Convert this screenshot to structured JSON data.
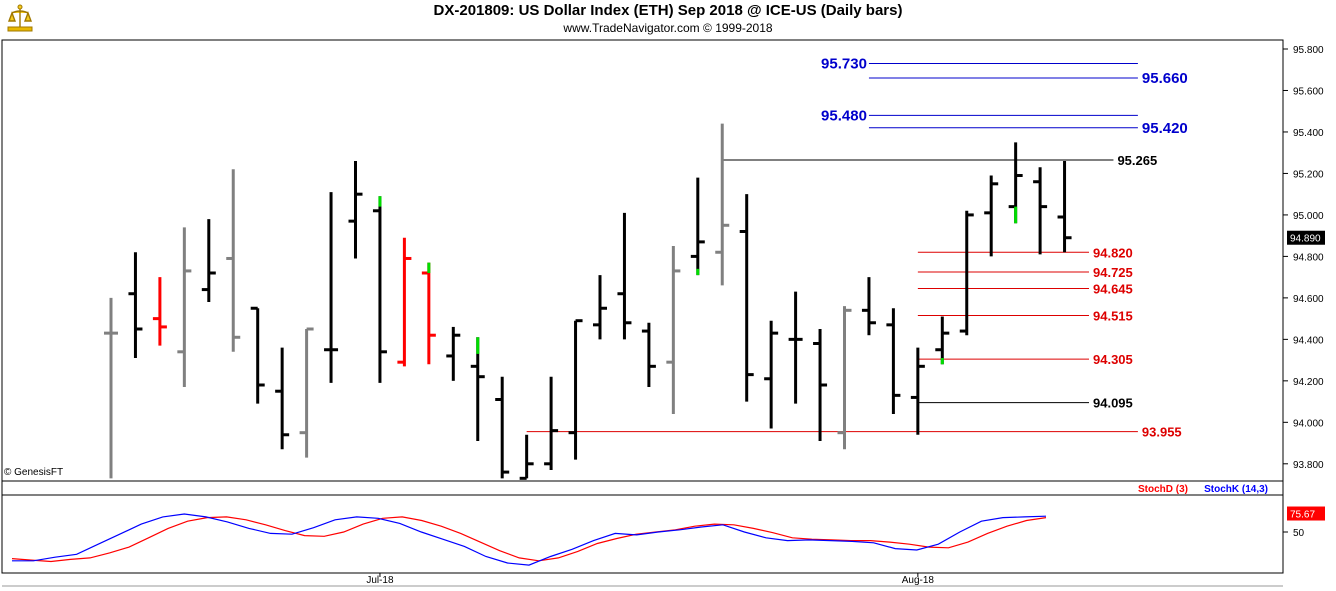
{
  "header": {
    "title": "DX-201809:  US Dollar Index (ETH) Sep 2018 @ ICE-US  (Daily bars)",
    "subtitle": "www.TradeNavigator.com © 1999-2018",
    "copyright": "© GenesisFT"
  },
  "colors": {
    "up": "#000000",
    "down": "#808080",
    "red_bar": "#ff0000",
    "green_tick": "#00dd00",
    "blue_line": "#0000cc",
    "red_line": "#dd0000",
    "black_line": "#000000",
    "stochK": "#0000ff",
    "stochD": "#ff0000"
  },
  "chart_data": [
    {
      "type": "ohlc",
      "title": "DX-201809:  US Dollar Index (ETH) Sep 2018 @ ICE-US  (Daily bars)",
      "ylim": [
        93.73,
        95.92
      ],
      "yticks": [
        "95.800",
        "95.600",
        "95.400",
        "95.200",
        "95.000",
        "94.800",
        "94.600",
        "94.400",
        "94.200",
        "94.000",
        "93.800"
      ],
      "x_labels": [
        {
          "label": "Jul-18",
          "bar": 11
        },
        {
          "label": "Aug-18",
          "bar": 33
        }
      ],
      "last_price": "94.890",
      "bars": [
        {
          "o": 94.43,
          "h": 94.6,
          "l": 93.73,
          "c": 94.43,
          "color": "gray"
        },
        {
          "o": 94.62,
          "h": 94.82,
          "l": 94.31,
          "c": 94.45,
          "color": "black"
        },
        {
          "o": 94.5,
          "h": 94.7,
          "l": 94.37,
          "c": 94.46,
          "color": "red"
        },
        {
          "o": 94.34,
          "h": 94.94,
          "l": 94.17,
          "c": 94.73,
          "color": "gray"
        },
        {
          "o": 94.64,
          "h": 94.98,
          "l": 94.58,
          "c": 94.72,
          "color": "black"
        },
        {
          "o": 94.79,
          "h": 95.22,
          "l": 94.34,
          "c": 94.41,
          "color": "gray"
        },
        {
          "o": 94.55,
          "h": 94.55,
          "l": 94.09,
          "c": 94.18,
          "color": "black"
        },
        {
          "o": 94.15,
          "h": 94.36,
          "l": 93.87,
          "c": 93.94,
          "color": "black"
        },
        {
          "o": 93.95,
          "h": 94.45,
          "l": 93.83,
          "c": 94.45,
          "color": "gray"
        },
        {
          "o": 94.35,
          "h": 95.11,
          "l": 94.19,
          "c": 94.35,
          "color": "black"
        },
        {
          "o": 94.97,
          "h": 95.26,
          "l": 94.79,
          "c": 95.1,
          "color": "black"
        },
        {
          "o": 95.02,
          "h": 95.09,
          "l": 94.19,
          "c": 94.34,
          "color": "black",
          "tick": [
            95.04,
            95.09
          ]
        },
        {
          "o": 94.29,
          "h": 94.89,
          "l": 94.27,
          "c": 94.79,
          "color": "red"
        },
        {
          "o": 94.72,
          "h": 94.77,
          "l": 94.28,
          "c": 94.42,
          "color": "red",
          "tick": [
            94.72,
            94.77
          ]
        },
        {
          "o": 94.32,
          "h": 94.46,
          "l": 94.2,
          "c": 94.42,
          "color": "black"
        },
        {
          "o": 94.27,
          "h": 94.41,
          "l": 93.91,
          "c": 94.22,
          "color": "black",
          "tick": [
            94.33,
            94.41
          ]
        },
        {
          "o": 94.11,
          "h": 94.22,
          "l": 93.73,
          "c": 93.76,
          "color": "black"
        },
        {
          "o": 93.73,
          "h": 93.94,
          "l": 93.73,
          "c": 93.8,
          "color": "black"
        },
        {
          "o": 93.8,
          "h": 94.22,
          "l": 93.77,
          "c": 93.96,
          "color": "black"
        },
        {
          "o": 93.95,
          "h": 94.49,
          "l": 93.82,
          "c": 94.49,
          "color": "black"
        },
        {
          "o": 94.47,
          "h": 94.71,
          "l": 94.4,
          "c": 94.55,
          "color": "black"
        },
        {
          "o": 94.62,
          "h": 95.01,
          "l": 94.4,
          "c": 94.48,
          "color": "black"
        },
        {
          "o": 94.44,
          "h": 94.48,
          "l": 94.17,
          "c": 94.27,
          "color": "black"
        },
        {
          "o": 94.29,
          "h": 94.85,
          "l": 94.04,
          "c": 94.73,
          "color": "gray"
        },
        {
          "o": 94.8,
          "h": 95.18,
          "l": 94.71,
          "c": 94.87,
          "color": "black",
          "tick": [
            94.71,
            94.74
          ]
        },
        {
          "o": 94.82,
          "h": 95.44,
          "l": 94.66,
          "c": 94.95,
          "color": "gray"
        },
        {
          "o": 94.92,
          "h": 95.1,
          "l": 94.1,
          "c": 94.23,
          "color": "black"
        },
        {
          "o": 94.21,
          "h": 94.49,
          "l": 93.97,
          "c": 94.43,
          "color": "black"
        },
        {
          "o": 94.4,
          "h": 94.63,
          "l": 94.09,
          "c": 94.4,
          "color": "black"
        },
        {
          "o": 94.38,
          "h": 94.45,
          "l": 93.91,
          "c": 94.18,
          "color": "black"
        },
        {
          "o": 93.95,
          "h": 94.56,
          "l": 93.87,
          "c": 94.54,
          "color": "gray"
        },
        {
          "o": 94.54,
          "h": 94.7,
          "l": 94.42,
          "c": 94.48,
          "color": "black"
        },
        {
          "o": 94.47,
          "h": 94.55,
          "l": 94.04,
          "c": 94.13,
          "color": "black"
        },
        {
          "o": 94.12,
          "h": 94.36,
          "l": 93.94,
          "c": 94.27,
          "color": "black"
        },
        {
          "o": 94.35,
          "h": 94.51,
          "l": 94.28,
          "c": 94.43,
          "color": "black",
          "tick": [
            94.28,
            94.31
          ]
        },
        {
          "o": 94.44,
          "h": 95.02,
          "l": 94.42,
          "c": 95.0,
          "color": "black"
        },
        {
          "o": 95.01,
          "h": 95.19,
          "l": 94.8,
          "c": 95.15,
          "color": "black"
        },
        {
          "o": 95.04,
          "h": 95.35,
          "l": 94.96,
          "c": 95.19,
          "color": "black",
          "tick": [
            94.96,
            95.04
          ]
        },
        {
          "o": 95.16,
          "h": 95.23,
          "l": 94.81,
          "c": 95.04,
          "color": "black"
        },
        {
          "o": 94.99,
          "h": 95.26,
          "l": 94.82,
          "c": 94.89,
          "color": "black"
        }
      ],
      "levels": [
        {
          "value": 95.73,
          "label": "95.730",
          "color": "blue",
          "x0": 31,
          "x1": 42,
          "label_side": "left"
        },
        {
          "value": 95.66,
          "label": "95.660",
          "color": "blue",
          "x0": 31,
          "x1": 42,
          "label_side": "right"
        },
        {
          "value": 95.48,
          "label": "95.480",
          "color": "blue",
          "x0": 31,
          "x1": 42,
          "label_side": "left"
        },
        {
          "value": 95.42,
          "label": "95.420",
          "color": "blue",
          "x0": 31,
          "x1": 42,
          "label_side": "right"
        },
        {
          "value": 95.265,
          "label": "95.265",
          "color": "black",
          "x0": 25,
          "x1": 41,
          "label_side": "right"
        },
        {
          "value": 94.82,
          "label": "94.820",
          "color": "red",
          "x0": 33,
          "x1": 40,
          "label_side": "right"
        },
        {
          "value": 94.725,
          "label": "94.725",
          "color": "red",
          "x0": 33,
          "x1": 40,
          "label_side": "right"
        },
        {
          "value": 94.645,
          "label": "94.645",
          "color": "red",
          "x0": 33,
          "x1": 40,
          "label_side": "right"
        },
        {
          "value": 94.515,
          "label": "94.515",
          "color": "red",
          "x0": 33,
          "x1": 40,
          "label_side": "right"
        },
        {
          "value": 94.305,
          "label": "94.305",
          "color": "red",
          "x0": 33,
          "x1": 40,
          "label_side": "right"
        },
        {
          "value": 94.095,
          "label": "94.095",
          "color": "black",
          "x0": 33,
          "x1": 40,
          "label_side": "right"
        },
        {
          "value": 93.955,
          "label": "93.955",
          "color": "red",
          "x0": 17,
          "x1": 42,
          "label_side": "right"
        }
      ]
    },
    {
      "type": "line",
      "title": "Stochastic",
      "ylim": [
        0,
        100
      ],
      "yticks": [
        "50"
      ],
      "last_value": "75.67",
      "series": [
        {
          "name": "StochD (3)",
          "values": [
            13,
            11,
            9,
            12,
            14,
            21,
            29,
            42,
            55,
            65,
            70,
            71,
            67,
            60,
            52,
            45,
            44,
            50,
            61,
            69,
            71,
            66,
            58,
            48,
            36,
            24,
            14,
            10,
            14,
            23,
            34,
            41,
            47,
            50,
            53,
            58,
            61,
            60,
            55,
            49,
            42,
            40,
            39,
            38,
            38,
            36,
            33,
            29,
            28,
            36,
            48,
            58,
            66,
            70
          ]
        },
        {
          "name": "StochK (14,3)",
          "values": [
            10,
            10,
            15,
            19,
            33,
            47,
            61,
            71,
            75,
            71,
            64,
            55,
            48,
            47,
            56,
            67,
            71,
            69,
            62,
            50,
            40,
            30,
            16,
            7,
            4,
            16,
            26,
            38,
            48,
            46,
            50,
            53,
            57,
            60,
            50,
            42,
            38,
            39,
            38,
            37,
            35,
            27,
            25,
            33,
            50,
            65,
            70,
            71,
            72
          ]
        }
      ]
    }
  ]
}
